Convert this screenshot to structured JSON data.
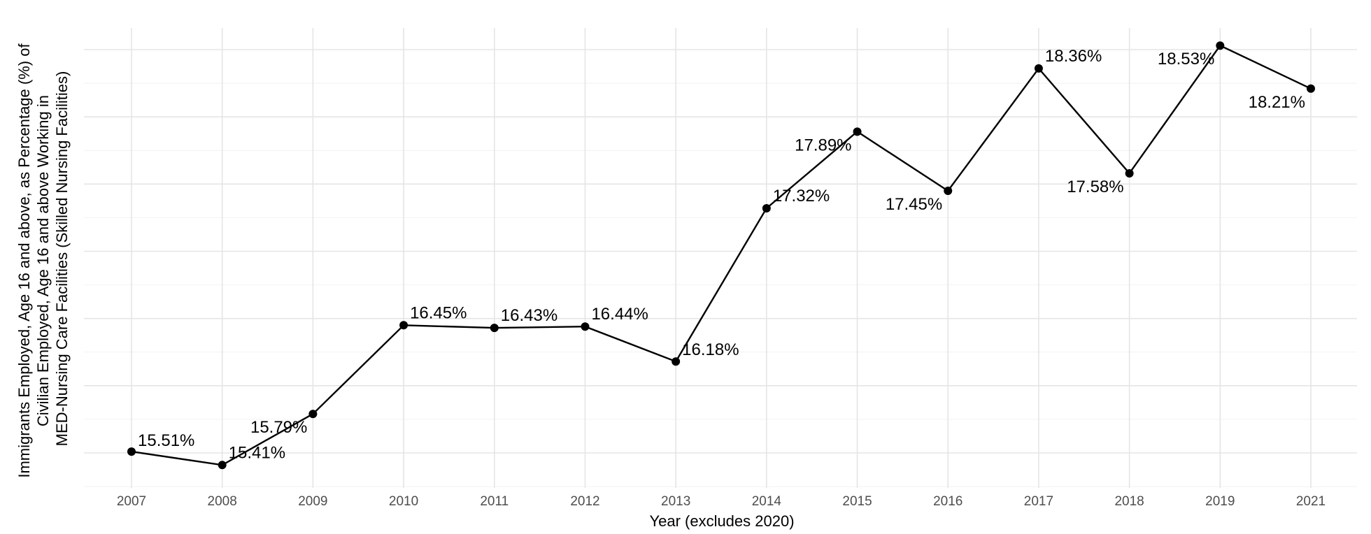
{
  "chart_data": {
    "type": "line",
    "title": "",
    "xlabel": "Year (excludes 2020)",
    "ylabel_lines": [
      "Immigrants Employed, Age 16 and above, as Percentage (%) of",
      "Civilian Employed, Age 16 and above Working in",
      "MED-Nursing Care Facilities (Skilled Nursing Facilities)"
    ],
    "categories": [
      "2007",
      "2008",
      "2009",
      "2010",
      "2011",
      "2012",
      "2013",
      "2014",
      "2015",
      "2016",
      "2017",
      "2018",
      "2019",
      "2021"
    ],
    "values": [
      15.51,
      15.41,
      15.79,
      16.45,
      16.43,
      16.44,
      16.18,
      17.32,
      17.89,
      17.45,
      18.36,
      17.58,
      18.53,
      18.21
    ],
    "labels": [
      "15.51%",
      "15.41%",
      "15.79%",
      "16.45%",
      "16.43%",
      "16.44%",
      "16.18%",
      "17.32%",
      "17.89%",
      "17.45%",
      "18.36%",
      "17.58%",
      "18.53%",
      "18.21%"
    ],
    "ylim": [
      15.5,
      18.5
    ],
    "y_tick_labels_visible": false,
    "grid": true,
    "legend": "none",
    "color": "#000000"
  }
}
